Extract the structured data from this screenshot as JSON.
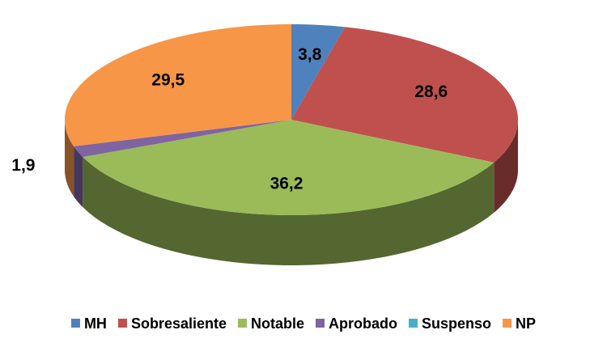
{
  "chart_data": {
    "type": "pie",
    "categories": [
      "MH",
      "Sobresaliente",
      "Notable",
      "Aprobado",
      "Suspenso",
      "NP"
    ],
    "values": [
      3.8,
      28.6,
      36.2,
      1.9,
      0,
      29.5
    ],
    "value_labels": [
      "3,8",
      "28,6",
      "36,2",
      "1,9",
      null,
      "29,5"
    ],
    "colors": [
      "#4f81bd",
      "#c0504d",
      "#9bbb59",
      "#8064a2",
      "#4bacc6",
      "#f79646"
    ],
    "legend": "bottom"
  }
}
